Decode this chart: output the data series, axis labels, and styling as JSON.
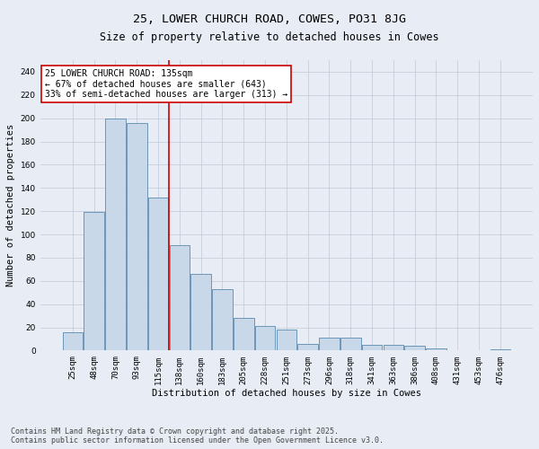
{
  "title_line1": "25, LOWER CHURCH ROAD, COWES, PO31 8JG",
  "title_line2": "Size of property relative to detached houses in Cowes",
  "xlabel": "Distribution of detached houses by size in Cowes",
  "ylabel": "Number of detached properties",
  "categories": [
    "25sqm",
    "48sqm",
    "70sqm",
    "93sqm",
    "115sqm",
    "138sqm",
    "160sqm",
    "183sqm",
    "205sqm",
    "228sqm",
    "251sqm",
    "273sqm",
    "296sqm",
    "318sqm",
    "341sqm",
    "363sqm",
    "386sqm",
    "408sqm",
    "431sqm",
    "453sqm",
    "476sqm"
  ],
  "values": [
    16,
    119,
    200,
    196,
    132,
    91,
    66,
    53,
    28,
    21,
    18,
    6,
    11,
    11,
    5,
    5,
    4,
    2,
    0,
    0,
    1
  ],
  "bar_color": "#c8d8e8",
  "bar_edge_color": "#5a8ab0",
  "vline_index": 5,
  "vline_color": "#cc0000",
  "annotation_text": "25 LOWER CHURCH ROAD: 135sqm\n← 67% of detached houses are smaller (643)\n33% of semi-detached houses are larger (313) →",
  "annotation_box_color": "#cc0000",
  "annotation_bg": "white",
  "ylim": [
    0,
    250
  ],
  "yticks": [
    0,
    20,
    40,
    60,
    80,
    100,
    120,
    140,
    160,
    180,
    200,
    220,
    240
  ],
  "grid_color": "#c0c8d8",
  "bg_color": "#e8edf5",
  "footer_line1": "Contains HM Land Registry data © Crown copyright and database right 2025.",
  "footer_line2": "Contains public sector information licensed under the Open Government Licence v3.0.",
  "title_fontsize": 9.5,
  "subtitle_fontsize": 8.5,
  "axis_label_fontsize": 7.5,
  "tick_fontsize": 6.5,
  "annotation_fontsize": 7,
  "footer_fontsize": 6
}
